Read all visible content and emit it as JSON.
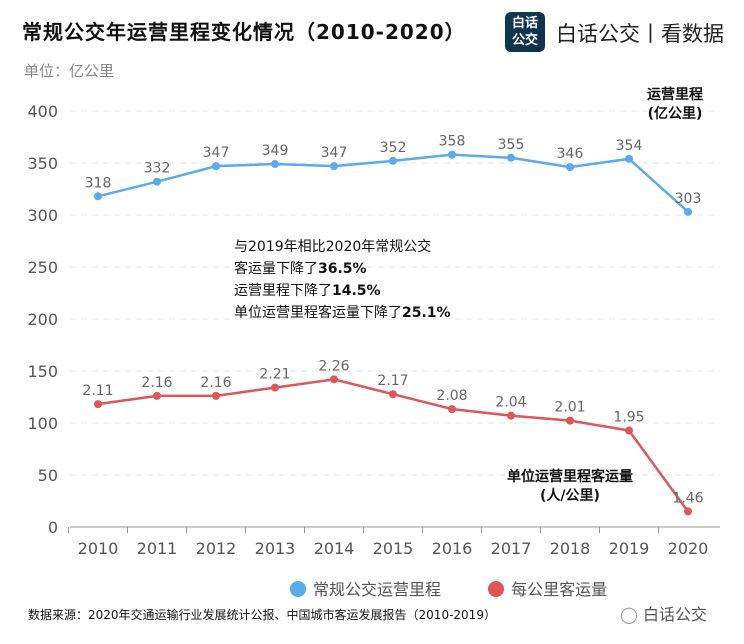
{
  "header": {
    "title": "常规公交年运营里程变化情况（2010-2020）",
    "logo_text": "白话公交",
    "brand": "白话公交丨看数据"
  },
  "colors": {
    "blue": "#5aaaf0",
    "red": "#e05555"
  },
  "chart_data": {
    "type": "line",
    "title": "常规公交年运营里程变化情况（2010-2020）",
    "ylabel": "单位：亿公里",
    "ylim": [
      0,
      400
    ],
    "yticks": [
      "0",
      "50",
      "100",
      "150",
      "200",
      "250",
      "300",
      "350",
      "400"
    ],
    "x": [
      "2010",
      "2011",
      "2012",
      "2013",
      "2014",
      "2015",
      "2016",
      "2017",
      "2018",
      "2019",
      "2020"
    ],
    "grid": true,
    "legend_placement": "bottom",
    "series": [
      {
        "name": "常规公交运营里程",
        "label": [
          "运营里程",
          "(亿公里)"
        ],
        "values": [
          318,
          332,
          347,
          349,
          347,
          352,
          358,
          355,
          346,
          354,
          303
        ]
      },
      {
        "name": "每公里客运量",
        "label": [
          "单位运营里程客运量",
          "(人/公里)"
        ],
        "values": [
          2.11,
          2.16,
          2.16,
          2.21,
          2.26,
          2.17,
          2.08,
          2.04,
          2.01,
          1.95,
          1.46
        ]
      }
    ],
    "annotation": {
      "line1": "与2019年相比2020年常规公交",
      "line2_pre": "客运量下降了",
      "line2_val": "36.5%",
      "line3_pre": "运营里程下降了",
      "line3_val": "14.5%",
      "line4_pre": "单位运营里程客运量下降了",
      "line4_val": "25.1%"
    }
  },
  "footer": {
    "source": "数据来源：2020年交通运输行业发展统计公报、中国城市客运发展报告（2010-2019）",
    "watermark": "白话公交"
  }
}
